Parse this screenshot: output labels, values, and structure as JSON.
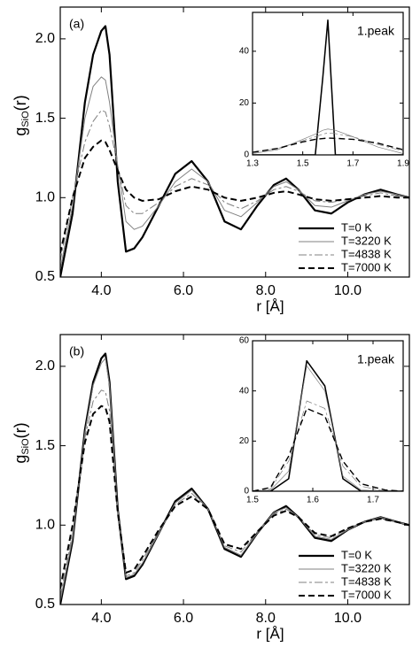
{
  "chart_data": [
    {
      "type": "line",
      "panel_label": "(a)",
      "x_label": "r [Å]",
      "y_label": {
        "main": "g",
        "sub": "SiO",
        "suffix": "(r)"
      },
      "legend": "lower right",
      "xlim": [
        3.0,
        11.5
      ],
      "ylim": [
        0.5,
        2.2
      ],
      "xticks": [
        {
          "value": 4,
          "label": "4.0"
        },
        {
          "value": 6,
          "label": "6.0"
        },
        {
          "value": 8,
          "label": "8.0"
        },
        {
          "value": 10,
          "label": "10.0"
        }
      ],
      "yticks": [
        0.5,
        {
          "value": 1,
          "label": "1.0"
        },
        1.5,
        {
          "value": 2,
          "label": "2.0"
        }
      ],
      "x": [
        3.0,
        3.3,
        3.6,
        3.8,
        4.0,
        4.1,
        4.2,
        4.4,
        4.6,
        4.8,
        5.0,
        5.4,
        5.8,
        6.2,
        6.6,
        7.0,
        7.4,
        7.8,
        8.2,
        8.5,
        8.8,
        9.2,
        9.6,
        10.0,
        10.4,
        10.8,
        11.2,
        11.5
      ],
      "series": [
        {
          "name": "T=0 K",
          "color": "#000000",
          "line_style": "solid",
          "values": [
            0.5,
            0.9,
            1.6,
            1.9,
            2.05,
            2.08,
            1.9,
            1.1,
            0.66,
            0.68,
            0.75,
            0.95,
            1.15,
            1.23,
            1.1,
            0.85,
            0.8,
            0.95,
            1.08,
            1.12,
            1.05,
            0.92,
            0.9,
            0.97,
            1.02,
            1.05,
            1.02,
            1.0
          ]
        },
        {
          "name": "T=3220 K",
          "color": "#808080",
          "line_style": "solid-thin",
          "values": [
            0.55,
            0.95,
            1.5,
            1.7,
            1.76,
            1.74,
            1.6,
            1.2,
            0.85,
            0.8,
            0.82,
            0.95,
            1.1,
            1.18,
            1.1,
            0.92,
            0.88,
            0.97,
            1.07,
            1.1,
            1.05,
            0.95,
            0.94,
            0.98,
            1.02,
            1.04,
            1.02,
            1.0
          ]
        },
        {
          "name": "T=4838 K",
          "color": "#808080",
          "line_style": "dashed-thin",
          "values": [
            0.6,
            1.0,
            1.35,
            1.48,
            1.55,
            1.54,
            1.45,
            1.2,
            0.95,
            0.9,
            0.9,
            0.97,
            1.07,
            1.12,
            1.08,
            0.97,
            0.93,
            0.98,
            1.05,
            1.07,
            1.04,
            0.98,
            0.97,
            0.99,
            1.01,
            1.03,
            1.01,
            1.0
          ]
        },
        {
          "name": "T=7000 K",
          "color": "#000000",
          "line_style": "dashed",
          "values": [
            0.65,
            1.0,
            1.25,
            1.32,
            1.36,
            1.35,
            1.3,
            1.17,
            1.05,
            1.0,
            0.98,
            0.99,
            1.04,
            1.07,
            1.05,
            1.0,
            0.98,
            1.0,
            1.03,
            1.04,
            1.02,
            0.99,
            0.98,
            0.99,
            1.0,
            1.01,
            1.0,
            1.0
          ]
        }
      ]
    },
    {
      "type": "line",
      "title": "1.peak",
      "xlim": [
        1.3,
        1.9
      ],
      "ylim": [
        0,
        55
      ],
      "xticks": [
        1.3,
        1.5,
        1.7,
        1.9
      ],
      "yticks": [
        0,
        20,
        40
      ],
      "x": [
        1.3,
        1.4,
        1.5,
        1.55,
        1.58,
        1.6,
        1.63,
        1.7,
        1.8,
        1.9
      ],
      "series": [
        {
          "name": "T=0 K",
          "color": "#000000",
          "line_style": "solid",
          "values": [
            0,
            0,
            0,
            0,
            30,
            52,
            0,
            0,
            0,
            0
          ]
        },
        {
          "name": "T=3220 K",
          "color": "#808080",
          "line_style": "solid-thin",
          "values": [
            0.5,
            2,
            6,
            8,
            9.5,
            10,
            9.5,
            7,
            3,
            0.5
          ]
        },
        {
          "name": "T=4838 K",
          "color": "#808080",
          "line_style": "dashed-thin",
          "values": [
            1,
            2.5,
            5.5,
            7,
            8,
            8.5,
            8.2,
            7,
            4,
            1.5
          ]
        },
        {
          "name": "T=7000 K",
          "color": "#000000",
          "line_style": "dashed",
          "values": [
            1,
            2.5,
            5,
            6,
            6.3,
            6.5,
            6.4,
            6,
            4.5,
            2
          ]
        }
      ]
    },
    {
      "type": "line",
      "panel_label": "(b)",
      "x_label": "r [Å]",
      "y_label": {
        "main": "g",
        "sub": "SiO",
        "suffix": "(r)"
      },
      "legend": "lower right",
      "xlim": [
        3.0,
        11.5
      ],
      "ylim": [
        0.5,
        2.2
      ],
      "xticks": [
        {
          "value": 4,
          "label": "4.0"
        },
        {
          "value": 6,
          "label": "6.0"
        },
        {
          "value": 8,
          "label": "8.0"
        },
        {
          "value": 10,
          "label": "10.0"
        }
      ],
      "yticks": [
        0.5,
        {
          "value": 1,
          "label": "1.0"
        },
        1.5,
        {
          "value": 2,
          "label": "2.0"
        }
      ],
      "x": [
        3.0,
        3.3,
        3.6,
        3.8,
        4.0,
        4.1,
        4.2,
        4.4,
        4.6,
        4.8,
        5.0,
        5.4,
        5.8,
        6.2,
        6.6,
        7.0,
        7.4,
        7.8,
        8.2,
        8.5,
        8.8,
        9.2,
        9.6,
        10.0,
        10.4,
        10.8,
        11.2,
        11.5
      ],
      "series": [
        {
          "name": "T=0 K",
          "color": "#000000",
          "line_style": "solid",
          "values": [
            0.5,
            0.9,
            1.6,
            1.9,
            2.05,
            2.08,
            1.9,
            1.1,
            0.66,
            0.68,
            0.75,
            0.95,
            1.15,
            1.23,
            1.1,
            0.85,
            0.8,
            0.95,
            1.08,
            1.12,
            1.05,
            0.92,
            0.9,
            0.97,
            1.02,
            1.05,
            1.02,
            1.0
          ]
        },
        {
          "name": "T=3220 K",
          "color": "#808080",
          "line_style": "solid-thin",
          "values": [
            0.52,
            0.92,
            1.58,
            1.88,
            2.02,
            2.05,
            1.88,
            1.1,
            0.67,
            0.69,
            0.76,
            0.95,
            1.14,
            1.22,
            1.1,
            0.86,
            0.81,
            0.95,
            1.08,
            1.11,
            1.05,
            0.93,
            0.91,
            0.97,
            1.02,
            1.05,
            1.02,
            1.0
          ]
        },
        {
          "name": "T=4838 K",
          "color": "#808080",
          "line_style": "dashed-thin",
          "values": [
            0.55,
            0.95,
            1.55,
            1.78,
            1.85,
            1.84,
            1.72,
            1.08,
            0.68,
            0.7,
            0.78,
            0.96,
            1.13,
            1.2,
            1.1,
            0.87,
            0.83,
            0.96,
            1.07,
            1.1,
            1.05,
            0.94,
            0.92,
            0.98,
            1.02,
            1.04,
            1.02,
            1.0
          ]
        },
        {
          "name": "T=7000 K",
          "color": "#000000",
          "line_style": "dashed",
          "values": [
            0.6,
            1.0,
            1.52,
            1.7,
            1.75,
            1.74,
            1.65,
            1.08,
            0.7,
            0.72,
            0.8,
            0.97,
            1.12,
            1.18,
            1.1,
            0.88,
            0.85,
            0.96,
            1.06,
            1.09,
            1.05,
            0.95,
            0.93,
            0.98,
            1.02,
            1.04,
            1.02,
            1.0
          ]
        }
      ]
    },
    {
      "type": "line",
      "title": "1.peak",
      "xlim": [
        1.5,
        1.75
      ],
      "ylim": [
        0,
        60
      ],
      "xticks": [
        1.5,
        1.6,
        1.7
      ],
      "yticks": [
        0,
        20,
        40,
        60
      ],
      "x": [
        1.5,
        1.53,
        1.56,
        1.59,
        1.62,
        1.65,
        1.68,
        1.72,
        1.75
      ],
      "series": [
        {
          "name": "T=0 K",
          "color": "#000000",
          "line_style": "solid",
          "values": [
            0,
            0,
            5,
            52,
            42,
            5,
            0,
            0,
            0
          ]
        },
        {
          "name": "T=3220 K",
          "color": "#808080",
          "line_style": "solid-thin",
          "values": [
            0,
            0.5,
            8,
            50,
            40,
            6,
            0.5,
            0,
            0
          ]
        },
        {
          "name": "T=4838 K",
          "color": "#808080",
          "line_style": "dashed-thin",
          "values": [
            0,
            1,
            12,
            36,
            33,
            10,
            2,
            0,
            0
          ]
        },
        {
          "name": "T=7000 K",
          "color": "#000000",
          "line_style": "dashed",
          "values": [
            0,
            1.5,
            14,
            33,
            30,
            12,
            3,
            0.5,
            0
          ]
        }
      ]
    }
  ]
}
